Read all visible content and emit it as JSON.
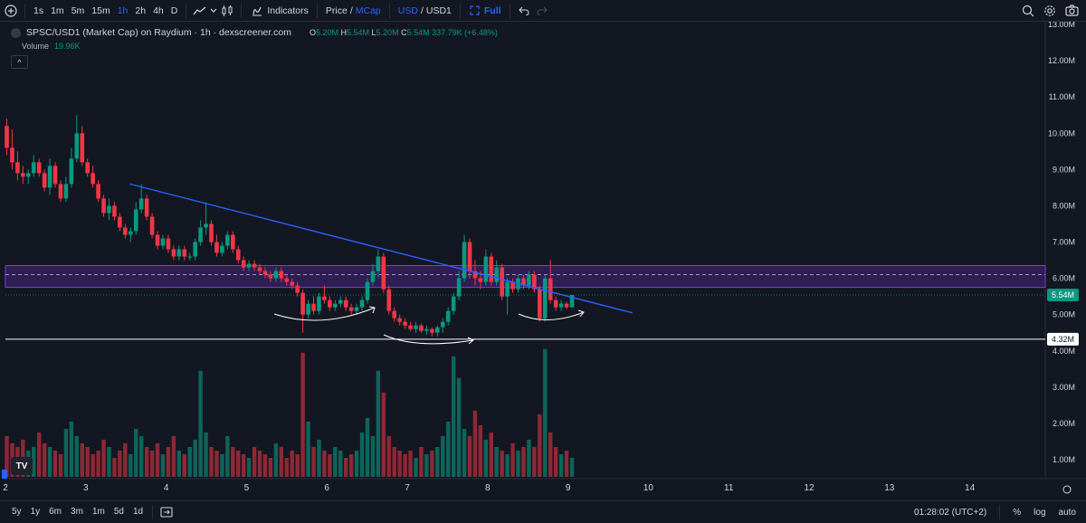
{
  "toolbar": {
    "timeframes": [
      "1s",
      "1m",
      "5m",
      "15m",
      "1h",
      "2h",
      "4h",
      "D"
    ],
    "active_timeframe": "1h",
    "indicators_label": "Indicators",
    "price_label": "Price",
    "slash": "/",
    "mcap_label": "MCap",
    "usd_label": "USD",
    "pair_quote": "USD1",
    "full_label": "Full"
  },
  "legend": {
    "title": "SPSC/USD1 (Market Cap) on Raydium · 1h · dexscreener.com",
    "o_key": "O",
    "o_val": "5.20M",
    "h_key": "H",
    "h_val": "5.54M",
    "l_key": "L",
    "l_val": "5.20M",
    "c_key": "C",
    "c_val": "5.54M",
    "change": "337.79K (+6.48%)",
    "volume_label": "Volume",
    "volume_value": "19.96K",
    "collapse_glyph": "^"
  },
  "chart_data": {
    "type": "candlestick",
    "y_tick_labels": [
      "13.00M",
      "12.00M",
      "11.00M",
      "10.00M",
      "9.00M",
      "8.00M",
      "7.00M",
      "6.00M",
      "5.00M",
      "4.00M",
      "3.00M",
      "2.00M",
      "1.00M"
    ],
    "x_tick_labels": [
      "2",
      "3",
      "4",
      "5",
      "6",
      "7",
      "8",
      "9",
      "10",
      "11",
      "12",
      "13",
      "14"
    ],
    "current_price_label": "5.54M",
    "horizontal_line_label": "4.32M",
    "horizontal_line_value": 4.32,
    "zone": {
      "low": 5.75,
      "high": 6.35,
      "mid": 6.1
    },
    "trendline": {
      "from": {
        "x": 3.55,
        "y": 8.6
      },
      "to": {
        "x": 9.8,
        "y": 5.05
      }
    },
    "x_range": [
      2,
      15.3
    ],
    "price_range": [
      0,
      13
    ],
    "colors": {
      "up": "#089981",
      "down": "#f23645",
      "trendline": "#2962ff",
      "zone": "#5b2c9c",
      "hline": "#ffffff"
    },
    "candles": [
      {
        "o": 10.2,
        "h": 10.4,
        "l": 9.4,
        "c": 9.6
      },
      {
        "o": 9.6,
        "h": 10.1,
        "l": 9.0,
        "c": 9.2
      },
      {
        "o": 9.2,
        "h": 9.5,
        "l": 8.7,
        "c": 8.9
      },
      {
        "o": 8.9,
        "h": 9.1,
        "l": 8.6,
        "c": 8.8
      },
      {
        "o": 8.8,
        "h": 9.0,
        "l": 8.6,
        "c": 8.9
      },
      {
        "o": 8.9,
        "h": 9.4,
        "l": 8.8,
        "c": 9.2
      },
      {
        "o": 9.2,
        "h": 9.3,
        "l": 8.8,
        "c": 8.9
      },
      {
        "o": 8.9,
        "h": 9.0,
        "l": 8.4,
        "c": 8.5
      },
      {
        "o": 8.5,
        "h": 9.3,
        "l": 8.3,
        "c": 9.1
      },
      {
        "o": 9.1,
        "h": 9.2,
        "l": 8.5,
        "c": 8.6
      },
      {
        "o": 8.6,
        "h": 8.7,
        "l": 8.1,
        "c": 8.2
      },
      {
        "o": 8.2,
        "h": 8.8,
        "l": 8.1,
        "c": 8.6
      },
      {
        "o": 8.6,
        "h": 9.6,
        "l": 8.5,
        "c": 9.3
      },
      {
        "o": 9.3,
        "h": 10.5,
        "l": 9.2,
        "c": 10.0
      },
      {
        "o": 10.0,
        "h": 10.2,
        "l": 9.1,
        "c": 9.2
      },
      {
        "o": 9.2,
        "h": 9.3,
        "l": 8.8,
        "c": 8.9
      },
      {
        "o": 8.9,
        "h": 9.1,
        "l": 8.5,
        "c": 8.6
      },
      {
        "o": 8.6,
        "h": 8.7,
        "l": 8.1,
        "c": 8.2
      },
      {
        "o": 8.2,
        "h": 8.3,
        "l": 7.7,
        "c": 7.8
      },
      {
        "o": 7.8,
        "h": 8.2,
        "l": 7.6,
        "c": 8.0
      },
      {
        "o": 8.0,
        "h": 8.1,
        "l": 7.6,
        "c": 7.7
      },
      {
        "o": 7.7,
        "h": 7.8,
        "l": 7.3,
        "c": 7.4
      },
      {
        "o": 7.4,
        "h": 7.5,
        "l": 7.1,
        "c": 7.2
      },
      {
        "o": 7.2,
        "h": 7.4,
        "l": 7.0,
        "c": 7.3
      },
      {
        "o": 7.3,
        "h": 8.1,
        "l": 7.2,
        "c": 7.9
      },
      {
        "o": 7.9,
        "h": 8.6,
        "l": 7.8,
        "c": 8.2
      },
      {
        "o": 8.2,
        "h": 8.3,
        "l": 7.6,
        "c": 7.7
      },
      {
        "o": 7.7,
        "h": 7.8,
        "l": 7.1,
        "c": 7.2
      },
      {
        "o": 7.2,
        "h": 7.3,
        "l": 6.8,
        "c": 6.9
      },
      {
        "o": 6.9,
        "h": 7.2,
        "l": 6.8,
        "c": 7.1
      },
      {
        "o": 7.1,
        "h": 7.2,
        "l": 6.7,
        "c": 6.8
      },
      {
        "o": 6.8,
        "h": 6.9,
        "l": 6.5,
        "c": 6.6
      },
      {
        "o": 6.6,
        "h": 6.9,
        "l": 6.5,
        "c": 6.8
      },
      {
        "o": 6.8,
        "h": 6.9,
        "l": 6.5,
        "c": 6.6
      },
      {
        "o": 6.6,
        "h": 6.7,
        "l": 6.5,
        "c": 6.6
      },
      {
        "o": 6.6,
        "h": 7.1,
        "l": 6.5,
        "c": 7.0
      },
      {
        "o": 7.0,
        "h": 7.6,
        "l": 6.9,
        "c": 7.4
      },
      {
        "o": 7.4,
        "h": 8.1,
        "l": 7.2,
        "c": 7.5
      },
      {
        "o": 7.5,
        "h": 7.6,
        "l": 6.9,
        "c": 7.0
      },
      {
        "o": 7.0,
        "h": 7.2,
        "l": 6.6,
        "c": 6.7
      },
      {
        "o": 6.7,
        "h": 7.0,
        "l": 6.6,
        "c": 6.9
      },
      {
        "o": 6.9,
        "h": 7.3,
        "l": 6.8,
        "c": 7.2
      },
      {
        "o": 7.2,
        "h": 7.3,
        "l": 6.7,
        "c": 6.8
      },
      {
        "o": 6.8,
        "h": 6.9,
        "l": 6.4,
        "c": 6.5
      },
      {
        "o": 6.5,
        "h": 6.6,
        "l": 6.2,
        "c": 6.3
      },
      {
        "o": 6.3,
        "h": 6.5,
        "l": 6.2,
        "c": 6.4
      },
      {
        "o": 6.4,
        "h": 6.5,
        "l": 6.2,
        "c": 6.3
      },
      {
        "o": 6.3,
        "h": 6.4,
        "l": 6.1,
        "c": 6.2
      },
      {
        "o": 6.2,
        "h": 6.3,
        "l": 6.0,
        "c": 6.1
      },
      {
        "o": 6.1,
        "h": 6.2,
        "l": 5.9,
        "c": 6.0
      },
      {
        "o": 6.0,
        "h": 6.3,
        "l": 5.9,
        "c": 6.2
      },
      {
        "o": 6.2,
        "h": 6.3,
        "l": 5.9,
        "c": 6.0
      },
      {
        "o": 6.0,
        "h": 6.1,
        "l": 5.8,
        "c": 5.9
      },
      {
        "o": 5.9,
        "h": 6.0,
        "l": 5.7,
        "c": 5.8
      },
      {
        "o": 5.8,
        "h": 5.9,
        "l": 5.5,
        "c": 5.6
      },
      {
        "o": 5.6,
        "h": 5.7,
        "l": 4.5,
        "c": 5.0
      },
      {
        "o": 5.0,
        "h": 5.4,
        "l": 4.9,
        "c": 5.3
      },
      {
        "o": 5.3,
        "h": 5.5,
        "l": 5.0,
        "c": 5.1
      },
      {
        "o": 5.1,
        "h": 5.6,
        "l": 5.0,
        "c": 5.5
      },
      {
        "o": 5.5,
        "h": 5.8,
        "l": 5.3,
        "c": 5.4
      },
      {
        "o": 5.4,
        "h": 5.5,
        "l": 5.1,
        "c": 5.2
      },
      {
        "o": 5.2,
        "h": 5.4,
        "l": 5.1,
        "c": 5.3
      },
      {
        "o": 5.3,
        "h": 5.5,
        "l": 5.2,
        "c": 5.4
      },
      {
        "o": 5.4,
        "h": 5.5,
        "l": 5.1,
        "c": 5.2
      },
      {
        "o": 5.2,
        "h": 5.3,
        "l": 5.0,
        "c": 5.1
      },
      {
        "o": 5.1,
        "h": 5.3,
        "l": 5.0,
        "c": 5.2
      },
      {
        "o": 5.2,
        "h": 5.5,
        "l": 5.1,
        "c": 5.4
      },
      {
        "o": 5.4,
        "h": 6.0,
        "l": 5.3,
        "c": 5.9
      },
      {
        "o": 5.9,
        "h": 6.4,
        "l": 5.8,
        "c": 6.2
      },
      {
        "o": 6.2,
        "h": 6.8,
        "l": 6.0,
        "c": 6.6
      },
      {
        "o": 6.6,
        "h": 6.7,
        "l": 5.6,
        "c": 5.7
      },
      {
        "o": 5.7,
        "h": 5.8,
        "l": 5.0,
        "c": 5.1
      },
      {
        "o": 5.1,
        "h": 5.2,
        "l": 4.8,
        "c": 4.9
      },
      {
        "o": 4.9,
        "h": 5.0,
        "l": 4.7,
        "c": 4.8
      },
      {
        "o": 4.8,
        "h": 4.9,
        "l": 4.6,
        "c": 4.7
      },
      {
        "o": 4.7,
        "h": 4.8,
        "l": 4.55,
        "c": 4.6
      },
      {
        "o": 4.6,
        "h": 4.8,
        "l": 4.5,
        "c": 4.7
      },
      {
        "o": 4.7,
        "h": 4.75,
        "l": 4.5,
        "c": 4.55
      },
      {
        "o": 4.55,
        "h": 4.7,
        "l": 4.45,
        "c": 4.6
      },
      {
        "o": 4.6,
        "h": 4.65,
        "l": 4.4,
        "c": 4.5
      },
      {
        "o": 4.5,
        "h": 4.7,
        "l": 4.4,
        "c": 4.65
      },
      {
        "o": 4.65,
        "h": 4.9,
        "l": 4.5,
        "c": 4.8
      },
      {
        "o": 4.8,
        "h": 5.2,
        "l": 4.7,
        "c": 5.1
      },
      {
        "o": 5.1,
        "h": 5.6,
        "l": 5.0,
        "c": 5.5
      },
      {
        "o": 5.5,
        "h": 6.2,
        "l": 5.4,
        "c": 6.0
      },
      {
        "o": 6.0,
        "h": 7.2,
        "l": 5.9,
        "c": 7.0
      },
      {
        "o": 7.0,
        "h": 7.1,
        "l": 6.0,
        "c": 6.2
      },
      {
        "o": 6.2,
        "h": 6.5,
        "l": 5.8,
        "c": 6.0
      },
      {
        "o": 6.0,
        "h": 6.2,
        "l": 5.7,
        "c": 5.9
      },
      {
        "o": 5.9,
        "h": 6.8,
        "l": 5.8,
        "c": 6.6
      },
      {
        "o": 6.6,
        "h": 6.7,
        "l": 5.8,
        "c": 5.9
      },
      {
        "o": 5.9,
        "h": 6.5,
        "l": 5.8,
        "c": 6.3
      },
      {
        "o": 6.3,
        "h": 6.4,
        "l": 5.4,
        "c": 5.5
      },
      {
        "o": 5.5,
        "h": 6.0,
        "l": 5.0,
        "c": 5.9
      },
      {
        "o": 5.9,
        "h": 6.0,
        "l": 5.6,
        "c": 5.7
      },
      {
        "o": 5.7,
        "h": 6.1,
        "l": 5.6,
        "c": 6.0
      },
      {
        "o": 6.0,
        "h": 6.1,
        "l": 5.7,
        "c": 5.8
      },
      {
        "o": 5.8,
        "h": 6.2,
        "l": 5.7,
        "c": 6.1
      },
      {
        "o": 6.1,
        "h": 6.2,
        "l": 5.6,
        "c": 5.7
      },
      {
        "o": 5.7,
        "h": 5.8,
        "l": 4.8,
        "c": 4.9
      },
      {
        "o": 4.9,
        "h": 6.1,
        "l": 4.8,
        "c": 6.0
      },
      {
        "o": 6.0,
        "h": 6.5,
        "l": 5.3,
        "c": 5.4
      },
      {
        "o": 5.4,
        "h": 5.5,
        "l": 5.1,
        "c": 5.2
      },
      {
        "o": 5.2,
        "h": 5.4,
        "l": 5.1,
        "c": 5.3
      },
      {
        "o": 5.3,
        "h": 5.35,
        "l": 5.15,
        "c": 5.2
      },
      {
        "o": 5.2,
        "h": 5.54,
        "l": 5.2,
        "c": 5.54
      }
    ],
    "volume": [
      1.2,
      1.0,
      0.9,
      1.1,
      0.8,
      0.9,
      1.3,
      1.0,
      0.9,
      0.8,
      0.7,
      1.4,
      1.6,
      1.2,
      1.0,
      0.9,
      0.7,
      0.8,
      1.1,
      0.9,
      0.6,
      0.8,
      1.0,
      0.7,
      1.4,
      1.2,
      0.9,
      0.8,
      1.0,
      0.7,
      0.9,
      1.2,
      0.8,
      0.7,
      0.9,
      1.1,
      3.0,
      1.3,
      0.9,
      0.8,
      0.7,
      1.2,
      0.9,
      0.8,
      0.7,
      0.6,
      0.9,
      0.8,
      0.7,
      0.6,
      1.0,
      0.9,
      0.6,
      0.8,
      0.7,
      3.5,
      1.6,
      0.9,
      1.1,
      0.8,
      0.7,
      0.9,
      0.8,
      0.6,
      0.7,
      0.8,
      1.3,
      1.7,
      1.2,
      3.0,
      2.4,
      1.2,
      0.9,
      0.8,
      0.7,
      0.8,
      0.6,
      0.9,
      0.7,
      0.8,
      0.9,
      1.2,
      1.6,
      3.4,
      2.8,
      1.4,
      1.2,
      1.9,
      1.5,
      1.1,
      1.3,
      0.9,
      0.8,
      0.7,
      1.0,
      0.8,
      0.9,
      1.1,
      0.9,
      1.8,
      3.6,
      1.3,
      0.9,
      0.7,
      0.8,
      0.6
    ]
  },
  "bottombar": {
    "ranges": [
      "5y",
      "1y",
      "6m",
      "3m",
      "1m",
      "5d",
      "1d"
    ],
    "clock": "01:28:02 (UTC+2)",
    "percent": "%",
    "log": "log",
    "auto": "auto"
  }
}
